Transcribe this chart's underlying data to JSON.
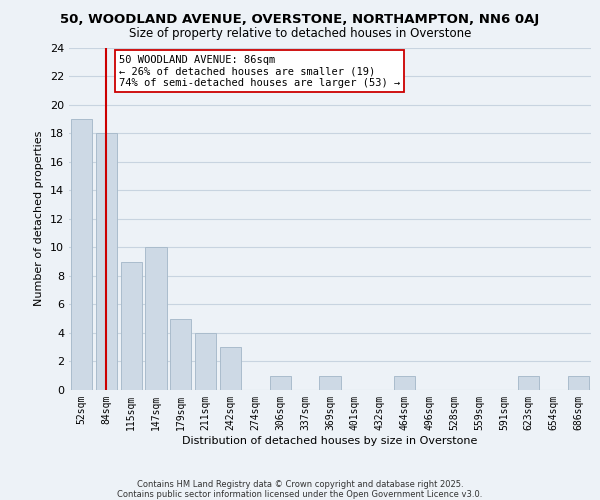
{
  "title": "50, WOODLAND AVENUE, OVERSTONE, NORTHAMPTON, NN6 0AJ",
  "subtitle": "Size of property relative to detached houses in Overstone",
  "xlabel": "Distribution of detached houses by size in Overstone",
  "ylabel": "Number of detached properties",
  "bar_labels": [
    "52sqm",
    "84sqm",
    "115sqm",
    "147sqm",
    "179sqm",
    "211sqm",
    "242sqm",
    "274sqm",
    "306sqm",
    "337sqm",
    "369sqm",
    "401sqm",
    "432sqm",
    "464sqm",
    "496sqm",
    "528sqm",
    "559sqm",
    "591sqm",
    "623sqm",
    "654sqm",
    "686sqm"
  ],
  "bar_values": [
    19,
    18,
    9,
    10,
    5,
    4,
    3,
    0,
    1,
    0,
    1,
    0,
    0,
    1,
    0,
    0,
    0,
    0,
    1,
    0,
    1
  ],
  "bar_color": "#cdd9e5",
  "bar_edge_color": "#aabccc",
  "grid_color": "#c8d4e0",
  "background_color": "#edf2f7",
  "vline_x_index": 1,
  "vline_color": "#cc0000",
  "annotation_text": "50 WOODLAND AVENUE: 86sqm\n← 26% of detached houses are smaller (19)\n74% of semi-detached houses are larger (53) →",
  "annotation_box_color": "#ffffff",
  "annotation_box_edge": "#cc0000",
  "ylim": [
    0,
    24
  ],
  "yticks": [
    0,
    2,
    4,
    6,
    8,
    10,
    12,
    14,
    16,
    18,
    20,
    22,
    24
  ],
  "footer1": "Contains HM Land Registry data © Crown copyright and database right 2025.",
  "footer2": "Contains public sector information licensed under the Open Government Licence v3.0."
}
